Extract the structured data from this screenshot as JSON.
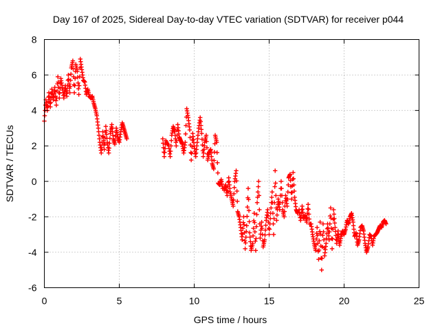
{
  "chart_data": {
    "type": "scatter",
    "title": "Day 167 of 2025, Sidereal Day-to-day VTEC variation (SDTVAR) for receiver p044",
    "xlabel": "GPS time / hours",
    "ylabel": "SDTVAR / TECUs",
    "xlim": [
      0,
      25
    ],
    "ylim": [
      -6,
      8
    ],
    "xticks": [
      0,
      5,
      10,
      15,
      20,
      25
    ],
    "yticks": [
      -6,
      -4,
      -2,
      0,
      2,
      4,
      6,
      8
    ],
    "grid": true,
    "marker": "+",
    "marker_color": "#ff0000",
    "series": [
      {
        "name": "SDTVAR",
        "segments": [
          [
            [
              0.0,
              3.4
            ],
            [
              0.1,
              4.6
            ],
            [
              0.2,
              4.0
            ],
            [
              0.3,
              5.0
            ],
            [
              0.4,
              4.2
            ],
            [
              0.5,
              5.2
            ],
            [
              0.6,
              4.6
            ],
            [
              0.7,
              5.3
            ],
            [
              0.8,
              4.3
            ],
            [
              0.9,
              5.9
            ],
            [
              1.0,
              4.7
            ],
            [
              1.1,
              5.8
            ],
            [
              1.2,
              5.3
            ],
            [
              1.3,
              4.7
            ],
            [
              1.4,
              5.4
            ],
            [
              1.5,
              4.8
            ],
            [
              1.6,
              6.0
            ],
            [
              1.7,
              5.0
            ],
            [
              1.8,
              6.4
            ],
            [
              1.9,
              6.8
            ],
            [
              2.0,
              5.0
            ],
            [
              2.1,
              6.6
            ],
            [
              2.2,
              6.2
            ],
            [
              2.3,
              4.9
            ],
            [
              2.4,
              6.9
            ],
            [
              2.5,
              6.3
            ],
            [
              2.6,
              5.7
            ],
            [
              2.7,
              5.6
            ],
            [
              2.8,
              4.9
            ],
            [
              2.9,
              5.2
            ],
            [
              3.0,
              4.8
            ],
            [
              3.1,
              4.7
            ],
            [
              3.2,
              4.8
            ],
            [
              3.3,
              4.4
            ],
            [
              3.4,
              4.1
            ],
            [
              3.5,
              3.7
            ],
            [
              3.6,
              3.0
            ],
            [
              3.7,
              2.2
            ],
            [
              3.8,
              1.6
            ],
            [
              3.9,
              2.8
            ],
            [
              4.0,
              1.8
            ],
            [
              4.1,
              3.1
            ],
            [
              4.2,
              2.2
            ],
            [
              4.3,
              1.6
            ],
            [
              4.4,
              2.7
            ],
            [
              4.5,
              3.2
            ],
            [
              4.6,
              2.4
            ],
            [
              4.7,
              2.1
            ],
            [
              4.8,
              3.0
            ],
            [
              4.9,
              2.5
            ],
            [
              5.0,
              2.2
            ],
            [
              5.1,
              2.8
            ],
            [
              5.2,
              3.3
            ],
            [
              5.3,
              3.0
            ],
            [
              5.4,
              2.7
            ],
            [
              5.5,
              2.4
            ]
          ],
          [
            [
              7.9,
              2.4
            ],
            [
              8.0,
              1.4
            ],
            [
              8.1,
              2.3
            ],
            [
              8.3,
              2.0
            ],
            [
              8.4,
              1.4
            ],
            [
              8.5,
              2.6
            ],
            [
              8.6,
              3.1
            ],
            [
              8.7,
              2.8
            ],
            [
              8.8,
              2.0
            ],
            [
              8.9,
              3.2
            ],
            [
              9.0,
              2.5
            ],
            [
              9.1,
              2.3
            ],
            [
              9.2,
              2.1
            ],
            [
              9.3,
              1.6
            ],
            [
              9.4,
              2.2
            ],
            [
              9.5,
              4.1
            ],
            [
              9.6,
              3.6
            ],
            [
              9.7,
              2.9
            ],
            [
              9.8,
              1.2
            ],
            [
              9.9,
              2.7
            ],
            [
              10.0,
              2.0
            ],
            [
              10.1,
              1.4
            ],
            [
              10.2,
              2.2
            ],
            [
              10.3,
              3.0
            ],
            [
              10.4,
              3.6
            ],
            [
              10.5,
              2.7
            ],
            [
              10.6,
              1.4
            ],
            [
              10.7,
              2.2
            ],
            [
              10.8,
              2.6
            ],
            [
              10.9,
              1.2
            ],
            [
              11.0,
              1.6
            ],
            [
              11.1,
              1.8
            ],
            [
              11.2,
              1.0
            ],
            [
              11.3,
              0.7
            ],
            [
              11.4,
              2.6
            ],
            [
              11.5,
              2.2
            ],
            [
              11.6,
              -0.1
            ],
            [
              11.7,
              -0.2
            ],
            [
              11.8,
              0.1
            ],
            [
              11.9,
              -0.4
            ]
          ],
          [
            [
              12.0,
              -0.5
            ],
            [
              12.1,
              -0.2
            ],
            [
              12.2,
              -0.8
            ],
            [
              12.3,
              0.2
            ],
            [
              12.4,
              -0.6
            ],
            [
              12.5,
              -1.0
            ],
            [
              12.6,
              -1.4
            ],
            [
              12.7,
              0.0
            ],
            [
              12.8,
              0.6
            ],
            [
              12.9,
              -1.7
            ],
            [
              13.0,
              -2.0
            ],
            [
              13.1,
              -2.6
            ],
            [
              13.2,
              -3.3
            ],
            [
              13.3,
              -2.0
            ],
            [
              13.4,
              -3.8
            ],
            [
              13.5,
              -2.5
            ],
            [
              13.6,
              -0.4
            ],
            [
              13.7,
              -2.9
            ],
            [
              13.8,
              -3.9
            ],
            [
              13.9,
              -3.5
            ],
            [
              14.0,
              -1.8
            ],
            [
              14.1,
              -3.9
            ],
            [
              14.2,
              -1.2
            ],
            [
              14.3,
              0.0
            ],
            [
              14.4,
              -3.2
            ],
            [
              14.5,
              -2.3
            ],
            [
              14.6,
              -3.7
            ],
            [
              14.7,
              -3.3
            ],
            [
              14.8,
              -2.2
            ],
            [
              14.9,
              -1.6
            ],
            [
              15.0,
              -3.0
            ],
            [
              15.1,
              -1.8
            ],
            [
              15.2,
              -0.6
            ],
            [
              15.3,
              -3.0
            ],
            [
              15.4,
              0.6
            ],
            [
              15.5,
              -2.2
            ],
            [
              15.6,
              -1.0
            ],
            [
              15.7,
              -1.6
            ],
            [
              15.8,
              0.0
            ],
            [
              15.9,
              -1.6
            ],
            [
              16.0,
              -2.0
            ],
            [
              16.1,
              -0.8
            ],
            [
              16.2,
              -1.4
            ],
            [
              16.3,
              0.2
            ],
            [
              16.4,
              0.4
            ],
            [
              16.5,
              -1.0
            ],
            [
              16.6,
              0.5
            ],
            [
              16.7,
              -0.9
            ],
            [
              16.8,
              -1.6
            ],
            [
              16.9,
              -1.8
            ]
          ],
          [
            [
              17.0,
              -1.6
            ],
            [
              17.1,
              -2.2
            ],
            [
              17.2,
              -1.4
            ],
            [
              17.3,
              -2.1
            ],
            [
              17.4,
              -1.9
            ],
            [
              17.5,
              -2.3
            ],
            [
              17.6,
              -1.3
            ],
            [
              17.7,
              -2.4
            ],
            [
              17.8,
              -2.4
            ],
            [
              17.9,
              -3.0
            ],
            [
              18.0,
              -3.5
            ],
            [
              18.1,
              -3.9
            ],
            [
              18.2,
              -2.6
            ],
            [
              18.3,
              -4.4
            ],
            [
              18.4,
              -2.3
            ],
            [
              18.5,
              -5.0
            ],
            [
              18.6,
              -2.4
            ],
            [
              18.7,
              -4.2
            ],
            [
              18.8,
              -3.5
            ],
            [
              18.9,
              -2.4
            ],
            [
              19.0,
              -3.3
            ],
            [
              19.1,
              -1.5
            ],
            [
              19.2,
              -3.8
            ],
            [
              19.3,
              -1.6
            ],
            [
              19.4,
              -2.6
            ],
            [
              19.5,
              -3.5
            ],
            [
              19.6,
              -2.8
            ],
            [
              19.7,
              -3.6
            ],
            [
              19.8,
              -3.1
            ],
            [
              19.9,
              -2.8
            ],
            [
              20.0,
              -3.0
            ],
            [
              20.1,
              -2.7
            ],
            [
              20.2,
              -2.2
            ],
            [
              20.3,
              -2.4
            ],
            [
              20.4,
              -2.0
            ],
            [
              20.5,
              -1.8
            ],
            [
              20.6,
              -2.3
            ],
            [
              20.7,
              -3.1
            ],
            [
              20.8,
              -2.9
            ],
            [
              20.9,
              -3.6
            ],
            [
              21.0,
              -3.3
            ],
            [
              21.1,
              -2.6
            ],
            [
              21.2,
              -2.5
            ],
            [
              21.3,
              -2.8
            ],
            [
              21.4,
              -3.5
            ],
            [
              21.5,
              -4.0
            ],
            [
              21.6,
              -3.7
            ],
            [
              21.7,
              -3.0
            ],
            [
              21.8,
              -3.1
            ],
            [
              21.9,
              -3.6
            ],
            [
              22.0,
              -3.1
            ],
            [
              22.1,
              -3.0
            ],
            [
              22.2,
              -2.9
            ],
            [
              22.3,
              -2.7
            ],
            [
              22.4,
              -2.5
            ],
            [
              22.5,
              -2.6
            ],
            [
              22.6,
              -2.3
            ],
            [
              22.7,
              -2.2
            ],
            [
              22.8,
              -2.4
            ]
          ]
        ]
      }
    ]
  }
}
